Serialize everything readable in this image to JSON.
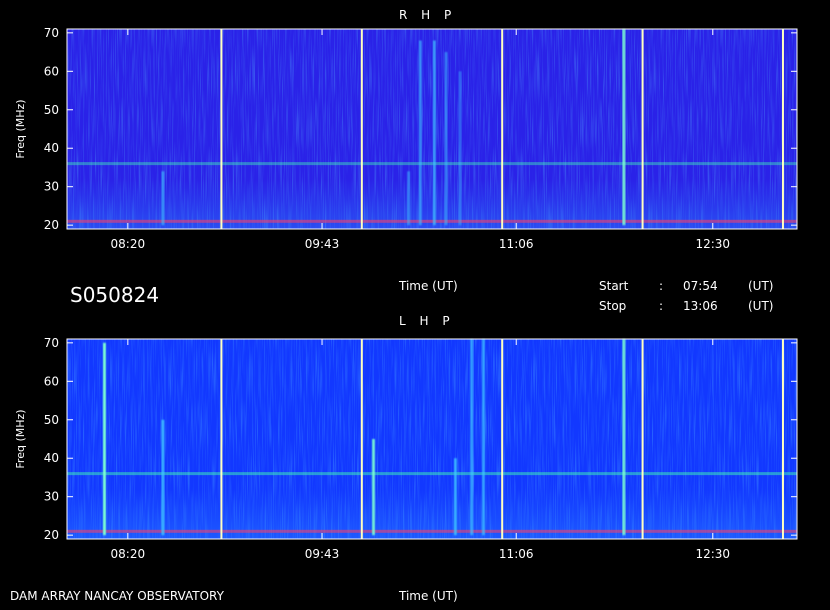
{
  "header": {
    "observation_id": "S050824",
    "time_label_mid": "Time (UT)",
    "start_label": "Start",
    "start_sep": ":",
    "start_time": "07:54",
    "start_unit": "(UT)",
    "stop_label": "Stop",
    "stop_sep": ":",
    "stop_time": "13:06",
    "stop_unit": "(UT)"
  },
  "footer": {
    "instrument": "DAM ARRAY   NANCAY OBSERVATORY",
    "time_label": "Time (UT)"
  },
  "colors": {
    "background": "#000000",
    "spectrum_low": "#1a1aff",
    "rhp_base": "#2a22e8",
    "lhp_base": "#1238ff",
    "separator_lines": "#ffffc0"
  },
  "chart_data": [
    {
      "type": "heatmap",
      "title": "R H P",
      "ylabel": "Freq (MHz)",
      "xlabel": "",
      "ylim": [
        19,
        71
      ],
      "yticks": [
        "20",
        "30",
        "40",
        "50",
        "60",
        "70"
      ],
      "xlim": [
        "07:54",
        "13:06"
      ],
      "xticks": [
        "08:20",
        "09:43",
        "11:06",
        "12:30"
      ],
      "separator_times": [
        "09:00",
        "10:00",
        "11:00",
        "12:00",
        "13:00"
      ],
      "bursts": [
        {
          "time": "08:35",
          "fmin": 20,
          "fmax": 34,
          "intensity": 0.6
        },
        {
          "time": "10:20",
          "fmin": 20,
          "fmax": 34,
          "intensity": 0.5
        },
        {
          "time": "10:25",
          "fmin": 20,
          "fmax": 68,
          "intensity": 0.6
        },
        {
          "time": "10:31",
          "fmin": 20,
          "fmax": 68,
          "intensity": 0.7
        },
        {
          "time": "10:36",
          "fmin": 20,
          "fmax": 65,
          "intensity": 0.5
        },
        {
          "time": "10:42",
          "fmin": 20,
          "fmax": 60,
          "intensity": 0.4
        },
        {
          "time": "11:52",
          "fmin": 20,
          "fmax": 71,
          "intensity": 0.9
        }
      ],
      "bands": [
        {
          "freq": 36,
          "intensity": 0.6
        },
        {
          "freq": 21,
          "intensity": 0.8
        }
      ]
    },
    {
      "type": "heatmap",
      "title": "L H P",
      "ylabel": "Freq (MHz)",
      "xlabel": "Time (UT)",
      "ylim": [
        19,
        71
      ],
      "yticks": [
        "20",
        "30",
        "40",
        "50",
        "60",
        "70"
      ],
      "xlim": [
        "07:54",
        "13:06"
      ],
      "xticks": [
        "08:20",
        "09:43",
        "11:06",
        "12:30"
      ],
      "separator_times": [
        "09:00",
        "10:00",
        "11:00",
        "12:00",
        "13:00"
      ],
      "bursts": [
        {
          "time": "08:10",
          "fmin": 20,
          "fmax": 70,
          "intensity": 1.0
        },
        {
          "time": "08:35",
          "fmin": 20,
          "fmax": 50,
          "intensity": 0.8
        },
        {
          "time": "10:05",
          "fmin": 20,
          "fmax": 45,
          "intensity": 0.9
        },
        {
          "time": "10:40",
          "fmin": 20,
          "fmax": 40,
          "intensity": 0.8
        },
        {
          "time": "10:47",
          "fmin": 20,
          "fmax": 71,
          "intensity": 0.7
        },
        {
          "time": "10:52",
          "fmin": 20,
          "fmax": 71,
          "intensity": 0.7
        },
        {
          "time": "11:52",
          "fmin": 20,
          "fmax": 71,
          "intensity": 0.9
        }
      ],
      "bands": [
        {
          "freq": 36,
          "intensity": 0.7
        },
        {
          "freq": 21,
          "intensity": 0.8
        }
      ]
    }
  ]
}
